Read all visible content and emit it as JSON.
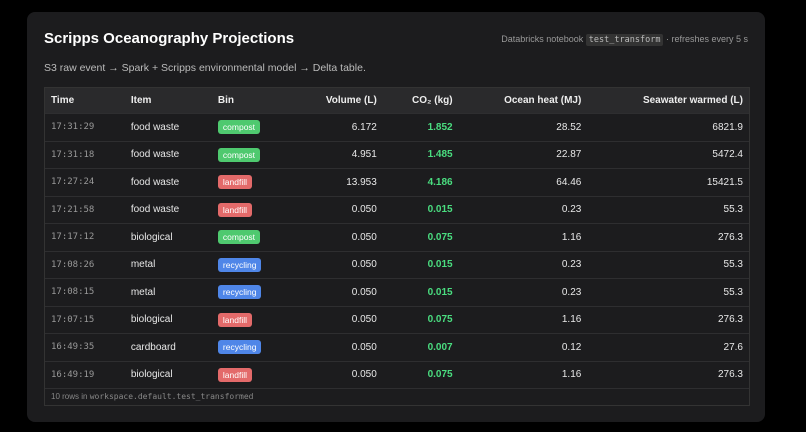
{
  "header": {
    "title": "Scripps Oceanography Projections",
    "source": {
      "prefix": "Databricks notebook",
      "code": "test_transform",
      "suffix": "· refreshes every 5 s"
    },
    "subtitle": "S3 raw event → Spark + Scripps environmental model → Delta table."
  },
  "table": {
    "columns": [
      "Time",
      "Item",
      "Bin",
      "Volume (L)",
      "CO₂ (kg)",
      "Ocean heat (MJ)",
      "Seawater warmed (L)"
    ],
    "rows": [
      [
        "17:31:29",
        "food waste",
        "compost",
        "6.172",
        "1.852",
        "28.52",
        "6821.9"
      ],
      [
        "17:31:18",
        "food waste",
        "compost",
        "4.951",
        "1.485",
        "22.87",
        "5472.4"
      ],
      [
        "17:27:24",
        "food waste",
        "landfill",
        "13.953",
        "4.186",
        "64.46",
        "15421.5"
      ],
      [
        "17:21:58",
        "food waste",
        "landfill",
        "0.050",
        "0.015",
        "0.23",
        "55.3"
      ],
      [
        "17:17:12",
        "biological",
        "compost",
        "0.050",
        "0.075",
        "1.16",
        "276.3"
      ],
      [
        "17:08:26",
        "metal",
        "recycling",
        "0.050",
        "0.015",
        "0.23",
        "55.3"
      ],
      [
        "17:08:15",
        "metal",
        "recycling",
        "0.050",
        "0.015",
        "0.23",
        "55.3"
      ],
      [
        "17:07:15",
        "biological",
        "landfill",
        "0.050",
        "0.075",
        "1.16",
        "276.3"
      ],
      [
        "16:49:35",
        "cardboard",
        "recycling",
        "0.050",
        "0.007",
        "0.12",
        "27.6"
      ],
      [
        "16:49:19",
        "biological",
        "landfill",
        "0.050",
        "0.075",
        "1.16",
        "276.3"
      ]
    ],
    "bin_colors": {
      "compost": "#4fc96f",
      "landfill": "#e36a6a",
      "recycling": "#4f86e8"
    },
    "footer": {
      "prefix": "10 rows in",
      "code": "workspace.default.test_transformed"
    }
  }
}
